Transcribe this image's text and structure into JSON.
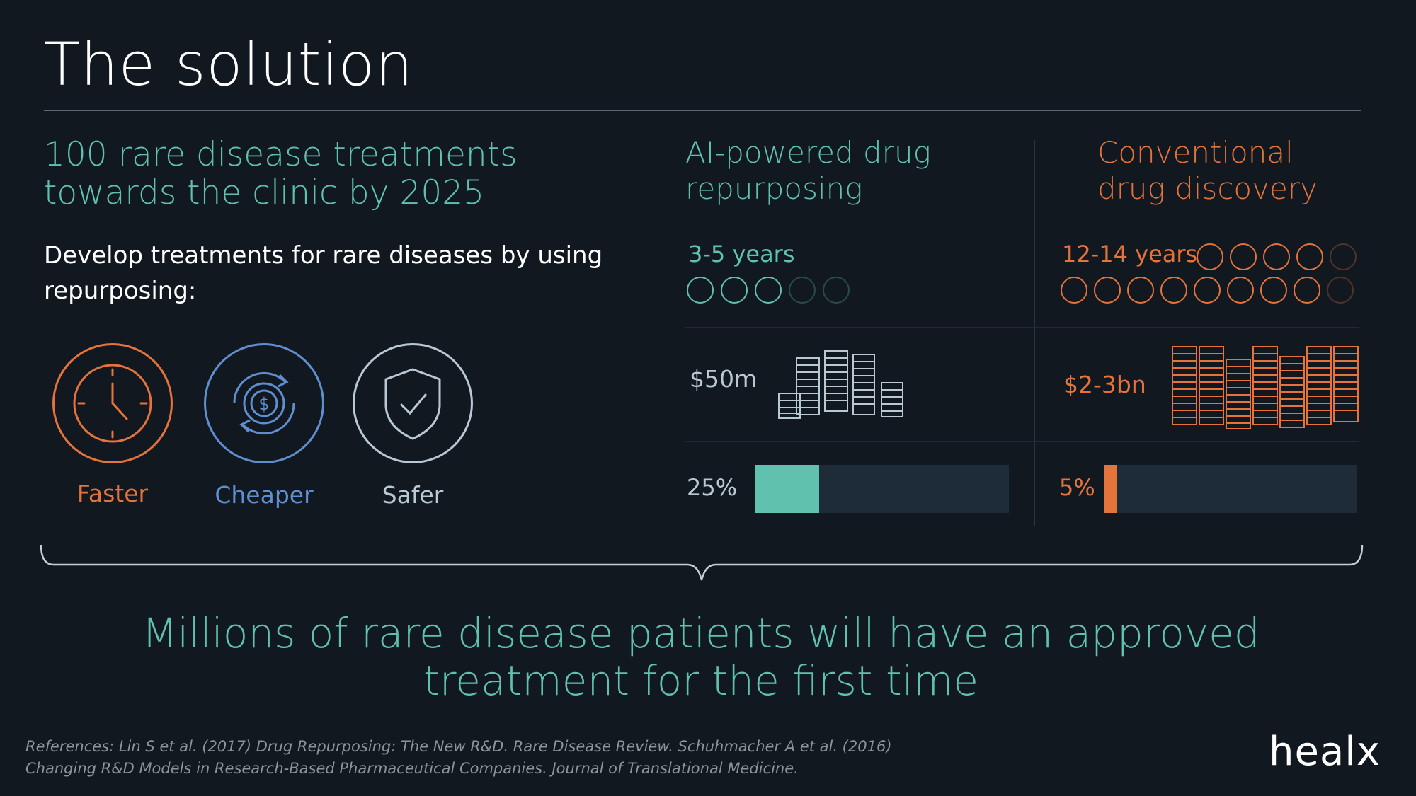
{
  "slide": {
    "title": "The solution",
    "headline": "100 rare disease treatments towards the clinic by 2025",
    "subheading": "Develop treatments for rare diseases by using repurposing:",
    "benefits": [
      {
        "label": "Faster",
        "icon": "clock-icon",
        "color": "#e5733a"
      },
      {
        "label": "Cheaper",
        "icon": "dollar-cycle-icon",
        "color": "#5f8fd0"
      },
      {
        "label": "Safer",
        "icon": "shield-check-icon",
        "color": "#b9c9d3"
      }
    ],
    "ai_column": {
      "title": "AI-powered drug repurposing",
      "duration": "3-5 years",
      "cost": "$50m",
      "success_rate": "25%",
      "success_fraction": 0.25,
      "color": "#5fc1ae"
    },
    "conventional_column": {
      "title": "Conventional drug discovery",
      "duration": "12-14 years",
      "cost": "$2-3bn",
      "success_rate": "5%",
      "success_fraction": 0.05,
      "color": "#e5733a"
    },
    "outcome": "Millions of rare disease patients will have an approved treatment for the first time",
    "references": "References: Lin S et al. (2017) Drug Repurposing: The New R&D. Rare Disease Review. Schuhmacher A et al. (2016) Changing R&D Models in Research-Based Pharmaceutical Companies. Journal of Translational Medicine.",
    "logo_text": "healx"
  }
}
